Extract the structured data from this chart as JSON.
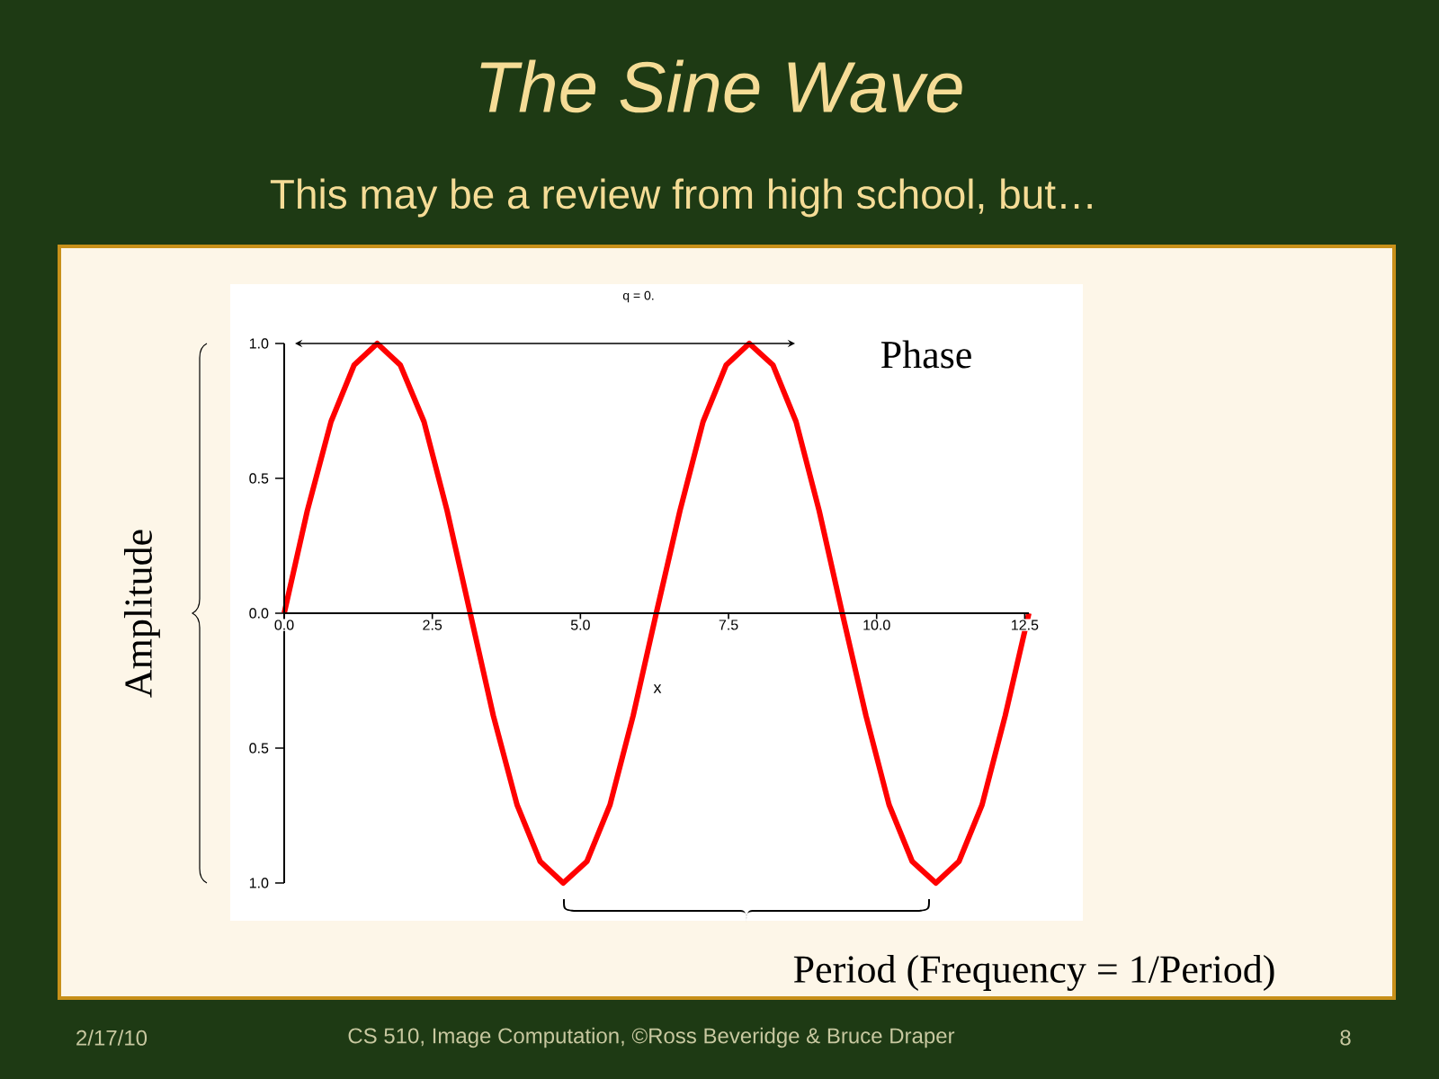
{
  "chart_data": {
    "type": "line",
    "title": "The Sine Wave",
    "subtitle": "This may be a review from high school, but…",
    "xlabel": "x",
    "ylabel": "Amplitude",
    "annotations": [
      "q = 0.",
      "Phase",
      "Period   (Frequency = 1/Period)",
      "2/17/10",
      "CS 510, Image Computation, ©Ross Beveridge & Bruce Draper",
      "8"
    ],
    "x": [
      0,
      0.39,
      0.79,
      1.18,
      1.57,
      1.96,
      2.36,
      2.75,
      3.14,
      3.53,
      3.93,
      4.32,
      4.71,
      5.11,
      5.5,
      5.89,
      6.28,
      6.68,
      7.07,
      7.46,
      7.85,
      8.25,
      8.64,
      9.03,
      9.42,
      9.82,
      10.21,
      10.6,
      11.0,
      11.39,
      11.78,
      12.17,
      12.57
    ],
    "series": [
      {
        "color": "#ff0000",
        "values": [
          0,
          0.38,
          0.71,
          0.92,
          1,
          0.92,
          0.71,
          0.38,
          0,
          -0.38,
          -0.71,
          -0.92,
          -1,
          -0.92,
          -0.71,
          -0.38,
          0,
          0.38,
          0.71,
          0.92,
          1,
          0.92,
          0.71,
          0.38,
          0,
          -0.38,
          -0.71,
          -0.92,
          -1,
          -0.92,
          -0.71,
          -0.38,
          0
        ]
      }
    ],
    "xlim": [
      0,
      12.57
    ],
    "ylim": [
      -1,
      1
    ],
    "xticks": [
      {
        "value": 0,
        "label": "0.0"
      },
      2.5,
      {
        "value": 5,
        "label": "5.0"
      },
      7.5,
      {
        "value": 10,
        "label": "10.0"
      },
      12.5
    ],
    "yticks": [
      {
        "value": -1,
        "label": "1.0"
      },
      {
        "value": -0.5,
        "label": "0.5"
      },
      {
        "value": 0,
        "label": "0.0"
      },
      0.5,
      {
        "value": 1,
        "label": "1.0"
      }
    ],
    "line_style": "solid"
  }
}
